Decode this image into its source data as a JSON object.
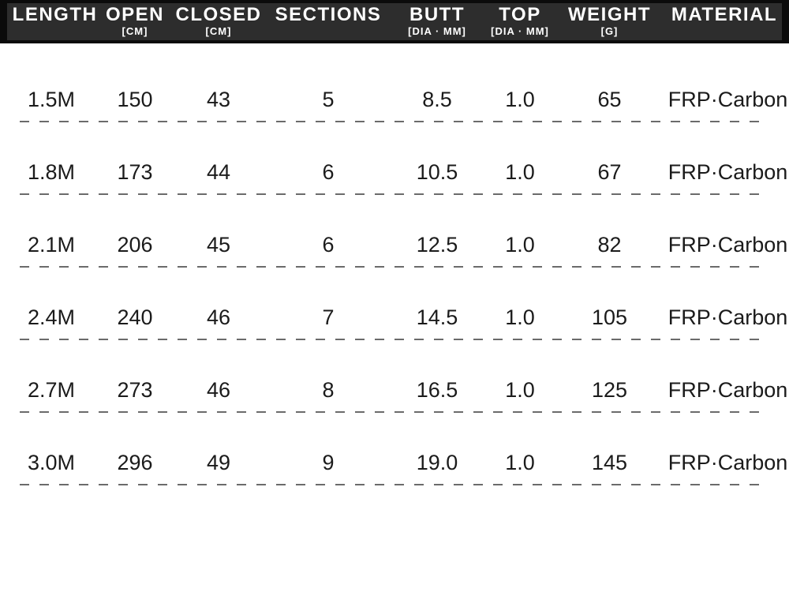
{
  "table": {
    "columns": [
      {
        "label": "LENGTH",
        "sub": ""
      },
      {
        "label": "OPEN",
        "sub": "[CM]"
      },
      {
        "label": "CLOSED",
        "sub": "[CM]"
      },
      {
        "label": "SECTIONS",
        "sub": ""
      },
      {
        "label": "BUTT",
        "sub": "[DIA · MM]"
      },
      {
        "label": "TOP",
        "sub": "[DIA · MM]"
      },
      {
        "label": "WEIGHT",
        "sub": "[G]"
      },
      {
        "label": "MATERIAL",
        "sub": ""
      }
    ],
    "rows": [
      [
        "1.5M",
        "150",
        "43",
        "5",
        "8.5",
        "1.0",
        "65",
        "FRP·Carbon"
      ],
      [
        "1.8M",
        "173",
        "44",
        "6",
        "10.5",
        "1.0",
        "67",
        "FRP·Carbon"
      ],
      [
        "2.1M",
        "206",
        "45",
        "6",
        "12.5",
        "1.0",
        "82",
        "FRP·Carbon"
      ],
      [
        "2.4M",
        "240",
        "46",
        "7",
        "14.5",
        "1.0",
        "105",
        "FRP·Carbon"
      ],
      [
        "2.7M",
        "273",
        "46",
        "8",
        "16.5",
        "1.0",
        "125",
        "FRP·Carbon"
      ],
      [
        "3.0M",
        "296",
        "49",
        "9",
        "19.0",
        "1.0",
        "145",
        "FRP·Carbon"
      ]
    ]
  },
  "chart_data": {
    "type": "table",
    "title": "Fishing rod specification table",
    "columns": [
      "LENGTH",
      "OPEN [CM]",
      "CLOSED [CM]",
      "SECTIONS",
      "BUTT [DIA · MM]",
      "TOP [DIA · MM]",
      "WEIGHT [G]",
      "MATERIAL"
    ],
    "rows": [
      [
        "1.5M",
        150,
        43,
        5,
        8.5,
        1.0,
        65,
        "FRP·Carbon"
      ],
      [
        "1.8M",
        173,
        44,
        6,
        10.5,
        1.0,
        67,
        "FRP·Carbon"
      ],
      [
        "2.1M",
        206,
        45,
        6,
        12.5,
        1.0,
        82,
        "FRP·Carbon"
      ],
      [
        "2.4M",
        240,
        46,
        7,
        14.5,
        1.0,
        105,
        "FRP·Carbon"
      ],
      [
        "2.7M",
        273,
        46,
        8,
        16.5,
        1.0,
        125,
        "FRP·Carbon"
      ],
      [
        "3.0M",
        296,
        49,
        9,
        19.0,
        1.0,
        145,
        "FRP·Carbon"
      ]
    ]
  },
  "colors": {
    "header_bg": "#2d2d2d",
    "header_border": "#0b0b0b",
    "header_text": "#ffffff",
    "row_text": "#1b1b1b",
    "divider": "#6b6b6b",
    "page_bg": "#ffffff"
  }
}
